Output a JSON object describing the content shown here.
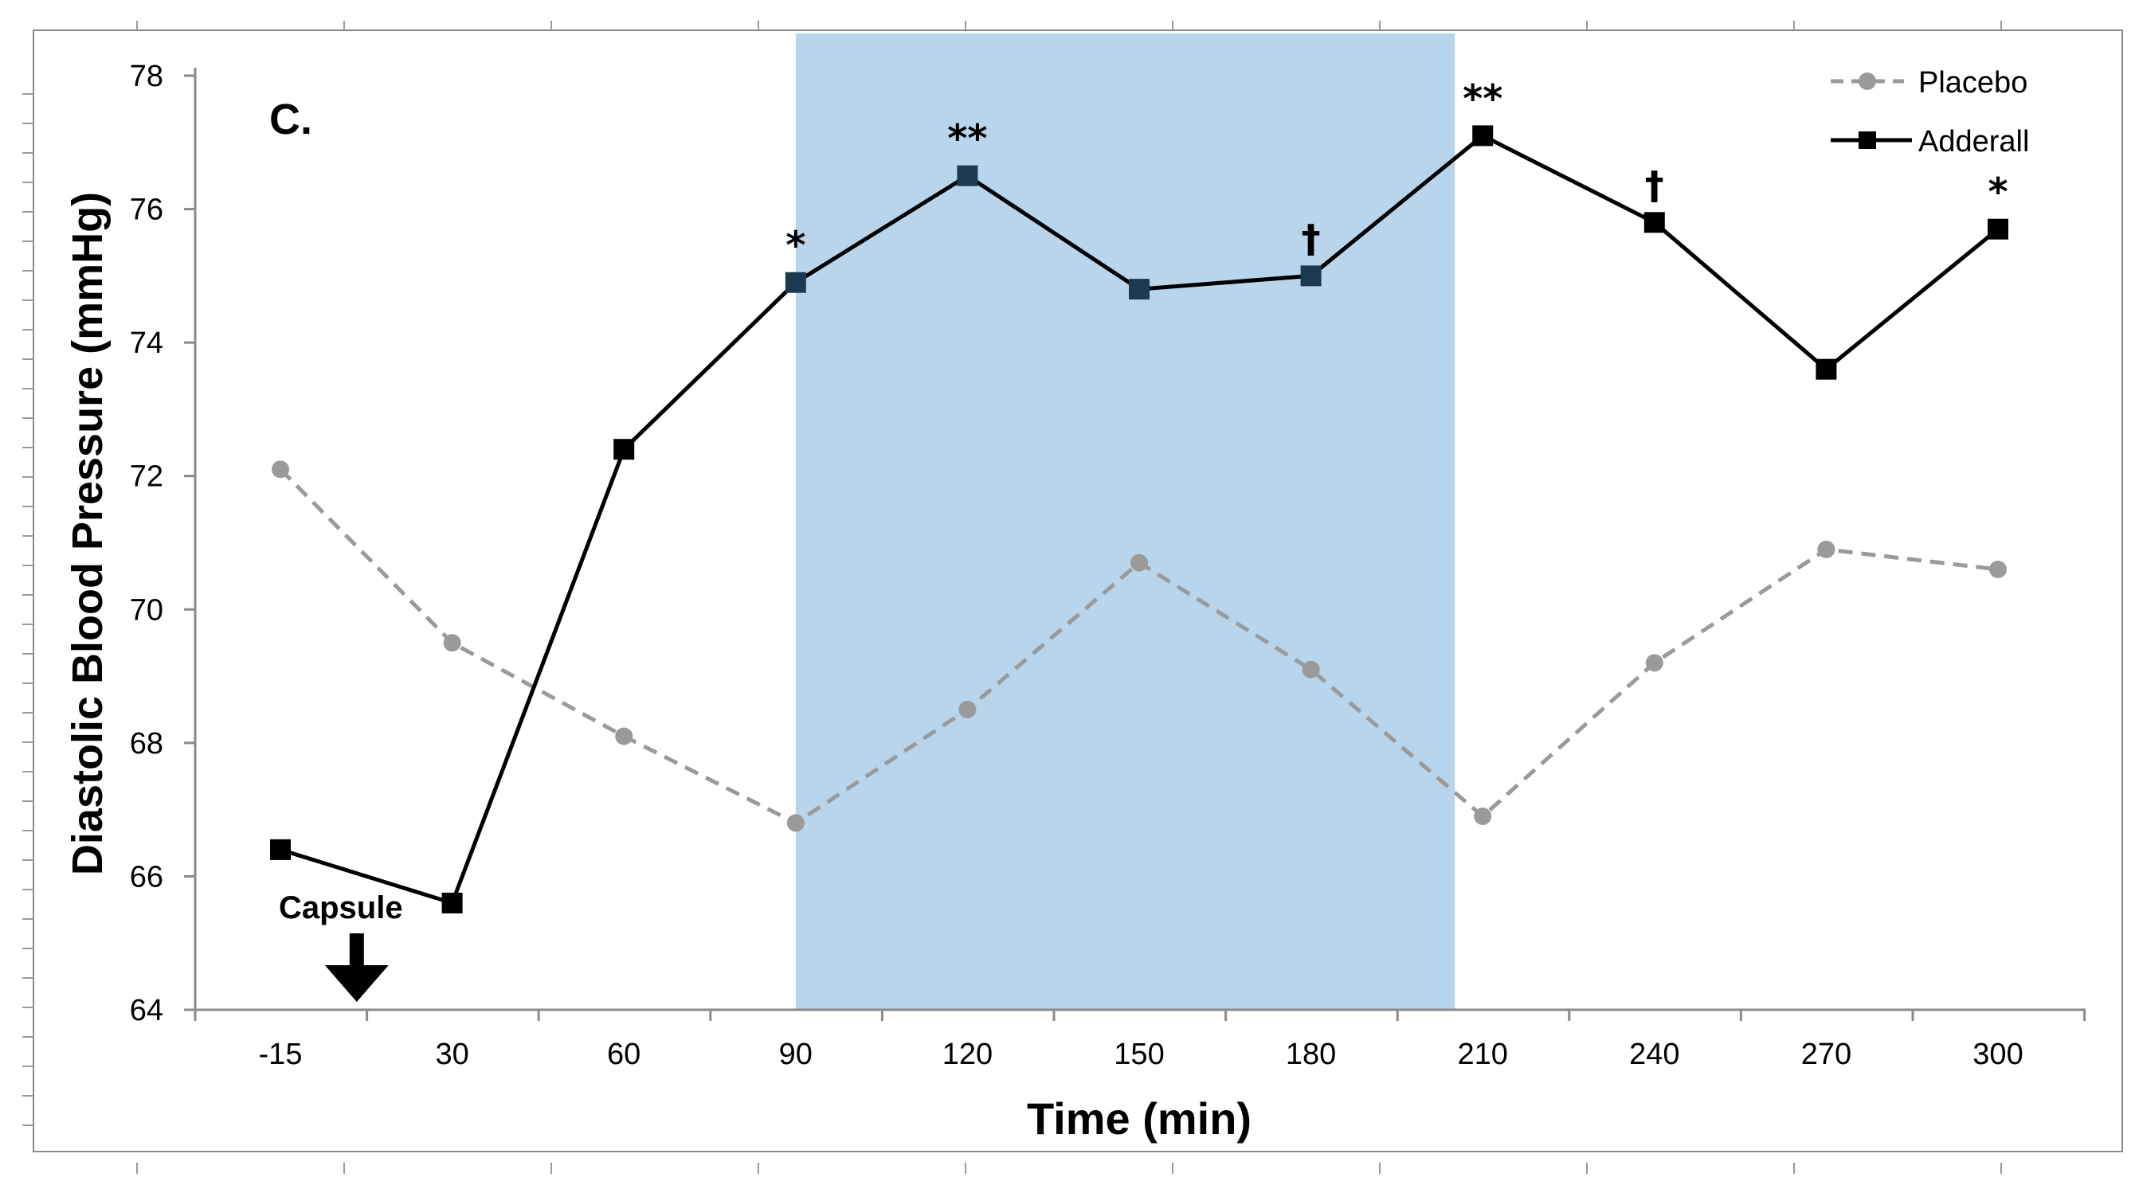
{
  "chart_data": {
    "type": "line",
    "panel_label": "C.",
    "xlabel": "Time (min)",
    "ylabel": "Diastolic Blood Pressure (mmHg)",
    "categories": [
      "-15",
      "30",
      "60",
      "90",
      "120",
      "150",
      "180",
      "210",
      "240",
      "270",
      "300"
    ],
    "yticks": [
      "64",
      "66",
      "68",
      "70",
      "72",
      "74",
      "76",
      "78"
    ],
    "ylim": [
      64,
      78
    ],
    "shaded_region": {
      "from_category_index": 3,
      "to_category_index": 7.0,
      "color": "#b8d5ec"
    },
    "series": [
      {
        "name": "Placebo",
        "style": "dashed",
        "marker": "circle",
        "color": "#9a9a9a",
        "values": [
          72.1,
          69.5,
          68.1,
          66.8,
          68.5,
          70.7,
          69.1,
          66.9,
          69.2,
          70.9,
          70.6
        ]
      },
      {
        "name": "Adderall",
        "style": "solid",
        "marker": "square",
        "color": "#000000",
        "values": [
          66.4,
          65.6,
          72.4,
          74.9,
          76.5,
          74.8,
          75.0,
          77.1,
          75.8,
          73.6,
          75.7
        ]
      }
    ],
    "significance": [
      {
        "category_index": 3,
        "label": "*"
      },
      {
        "category_index": 4,
        "label": "**"
      },
      {
        "category_index": 6,
        "label": "†"
      },
      {
        "category_index": 7,
        "label": "**"
      },
      {
        "category_index": 8,
        "label": "†"
      },
      {
        "category_index": 10,
        "label": "*"
      }
    ],
    "annotation": {
      "label": "Capsule",
      "arrow": "down",
      "position_between_categories": [
        0,
        1
      ]
    },
    "legend": {
      "placement": "top-right",
      "entries": [
        "Placebo",
        "Adderall"
      ]
    },
    "colors": {
      "shade": "#b8d5ec",
      "placebo": "#9a9a9a",
      "adderall": "#000000",
      "adderall_in_shade": "#1b3a4f",
      "border": "#808080"
    }
  }
}
